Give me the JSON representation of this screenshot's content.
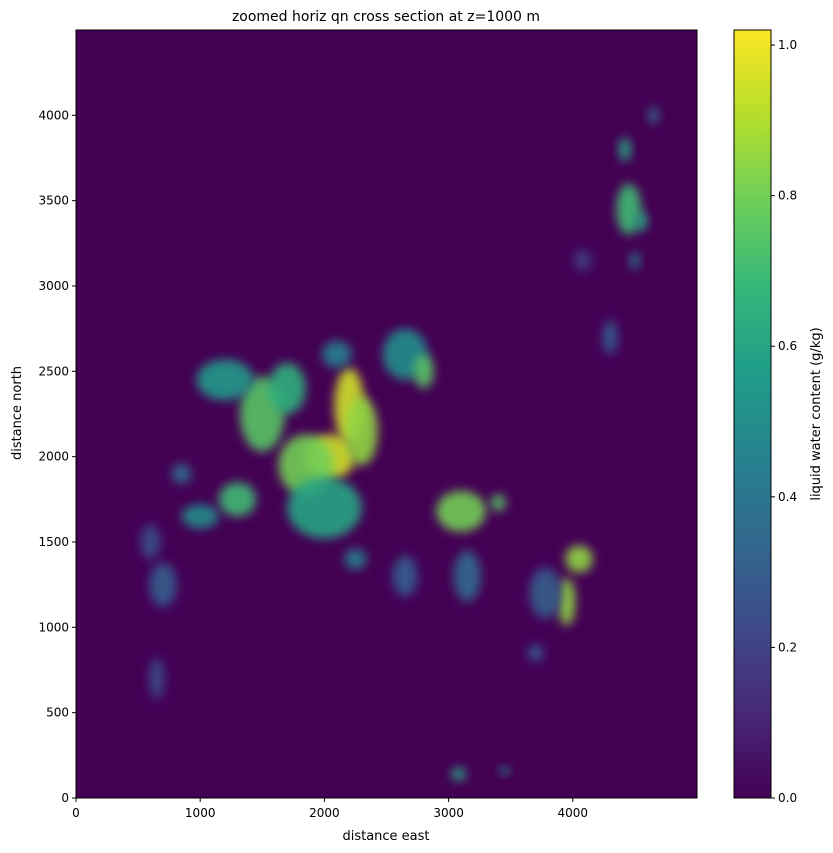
{
  "chart_data": {
    "type": "heatmap",
    "title": "zoomed horiz qn cross section at z=1000 m",
    "xlabel": "distance east",
    "ylabel": "distance north",
    "xlim": [
      0,
      5000
    ],
    "ylim": [
      0,
      4500
    ],
    "xticks": [
      0,
      1000,
      2000,
      3000,
      4000
    ],
    "yticks": [
      0,
      500,
      1000,
      1500,
      2000,
      2500,
      3000,
      3500,
      4000
    ],
    "colorbar": {
      "label": "liquid water content (g/kg)",
      "range": [
        0.0,
        1.02
      ],
      "ticks": [
        "0.0",
        "0.2",
        "0.4",
        "0.6",
        "0.8",
        "1.0"
      ],
      "tick_values": [
        0.0,
        0.2,
        0.4,
        0.6,
        0.8,
        1.0
      ],
      "colormap": "viridis",
      "stops": [
        "#440154",
        "#482878",
        "#3e4a89",
        "#31688e",
        "#26828e",
        "#1f9e89",
        "#35b779",
        "#6ece58",
        "#b5de2b",
        "#fde725"
      ]
    },
    "background_color": "#440154",
    "cloud_features": [
      {
        "x": 2200,
        "y": 2300,
        "value": 0.95,
        "rx": 120,
        "ry": 220
      },
      {
        "x": 2050,
        "y": 2000,
        "value": 0.95,
        "rx": 200,
        "ry": 130
      },
      {
        "x": 1850,
        "y": 1950,
        "value": 0.8,
        "rx": 220,
        "ry": 180
      },
      {
        "x": 2300,
        "y": 2150,
        "value": 0.85,
        "rx": 130,
        "ry": 200
      },
      {
        "x": 1500,
        "y": 2250,
        "value": 0.75,
        "rx": 180,
        "ry": 220
      },
      {
        "x": 1200,
        "y": 2450,
        "value": 0.55,
        "rx": 230,
        "ry": 120
      },
      {
        "x": 1700,
        "y": 2400,
        "value": 0.65,
        "rx": 150,
        "ry": 150
      },
      {
        "x": 2000,
        "y": 1700,
        "value": 0.6,
        "rx": 300,
        "ry": 180
      },
      {
        "x": 1300,
        "y": 1750,
        "value": 0.7,
        "rx": 150,
        "ry": 100
      },
      {
        "x": 1000,
        "y": 1650,
        "value": 0.5,
        "rx": 150,
        "ry": 70
      },
      {
        "x": 850,
        "y": 1900,
        "value": 0.35,
        "rx": 80,
        "ry": 60
      },
      {
        "x": 2650,
        "y": 2600,
        "value": 0.5,
        "rx": 180,
        "ry": 150
      },
      {
        "x": 2800,
        "y": 2500,
        "value": 0.75,
        "rx": 80,
        "ry": 100
      },
      {
        "x": 2100,
        "y": 2600,
        "value": 0.45,
        "rx": 120,
        "ry": 80
      },
      {
        "x": 3100,
        "y": 1680,
        "value": 0.8,
        "rx": 200,
        "ry": 120
      },
      {
        "x": 3400,
        "y": 1730,
        "value": 0.75,
        "rx": 60,
        "ry": 50
      },
      {
        "x": 3150,
        "y": 1300,
        "value": 0.35,
        "rx": 110,
        "ry": 150
      },
      {
        "x": 2650,
        "y": 1300,
        "value": 0.3,
        "rx": 100,
        "ry": 120
      },
      {
        "x": 2250,
        "y": 1400,
        "value": 0.45,
        "rx": 90,
        "ry": 60
      },
      {
        "x": 4050,
        "y": 1400,
        "value": 0.85,
        "rx": 110,
        "ry": 80
      },
      {
        "x": 3950,
        "y": 1150,
        "value": 0.85,
        "rx": 70,
        "ry": 140
      },
      {
        "x": 3780,
        "y": 1200,
        "value": 0.3,
        "rx": 130,
        "ry": 150
      },
      {
        "x": 3700,
        "y": 850,
        "value": 0.3,
        "rx": 60,
        "ry": 50
      },
      {
        "x": 4300,
        "y": 2700,
        "value": 0.3,
        "rx": 60,
        "ry": 100
      },
      {
        "x": 4450,
        "y": 3450,
        "value": 0.7,
        "rx": 100,
        "ry": 150
      },
      {
        "x": 4550,
        "y": 3380,
        "value": 0.6,
        "rx": 50,
        "ry": 60
      },
      {
        "x": 4420,
        "y": 3800,
        "value": 0.6,
        "rx": 50,
        "ry": 70
      },
      {
        "x": 4650,
        "y": 4000,
        "value": 0.35,
        "rx": 45,
        "ry": 50
      },
      {
        "x": 4500,
        "y": 3150,
        "value": 0.45,
        "rx": 40,
        "ry": 50
      },
      {
        "x": 4080,
        "y": 3150,
        "value": 0.2,
        "rx": 70,
        "ry": 60
      },
      {
        "x": 700,
        "y": 1250,
        "value": 0.3,
        "rx": 110,
        "ry": 130
      },
      {
        "x": 600,
        "y": 1500,
        "value": 0.25,
        "rx": 80,
        "ry": 100
      },
      {
        "x": 650,
        "y": 700,
        "value": 0.25,
        "rx": 60,
        "ry": 120
      },
      {
        "x": 3080,
        "y": 140,
        "value": 0.6,
        "rx": 60,
        "ry": 40
      },
      {
        "x": 3450,
        "y": 160,
        "value": 0.5,
        "rx": 40,
        "ry": 25
      }
    ]
  }
}
